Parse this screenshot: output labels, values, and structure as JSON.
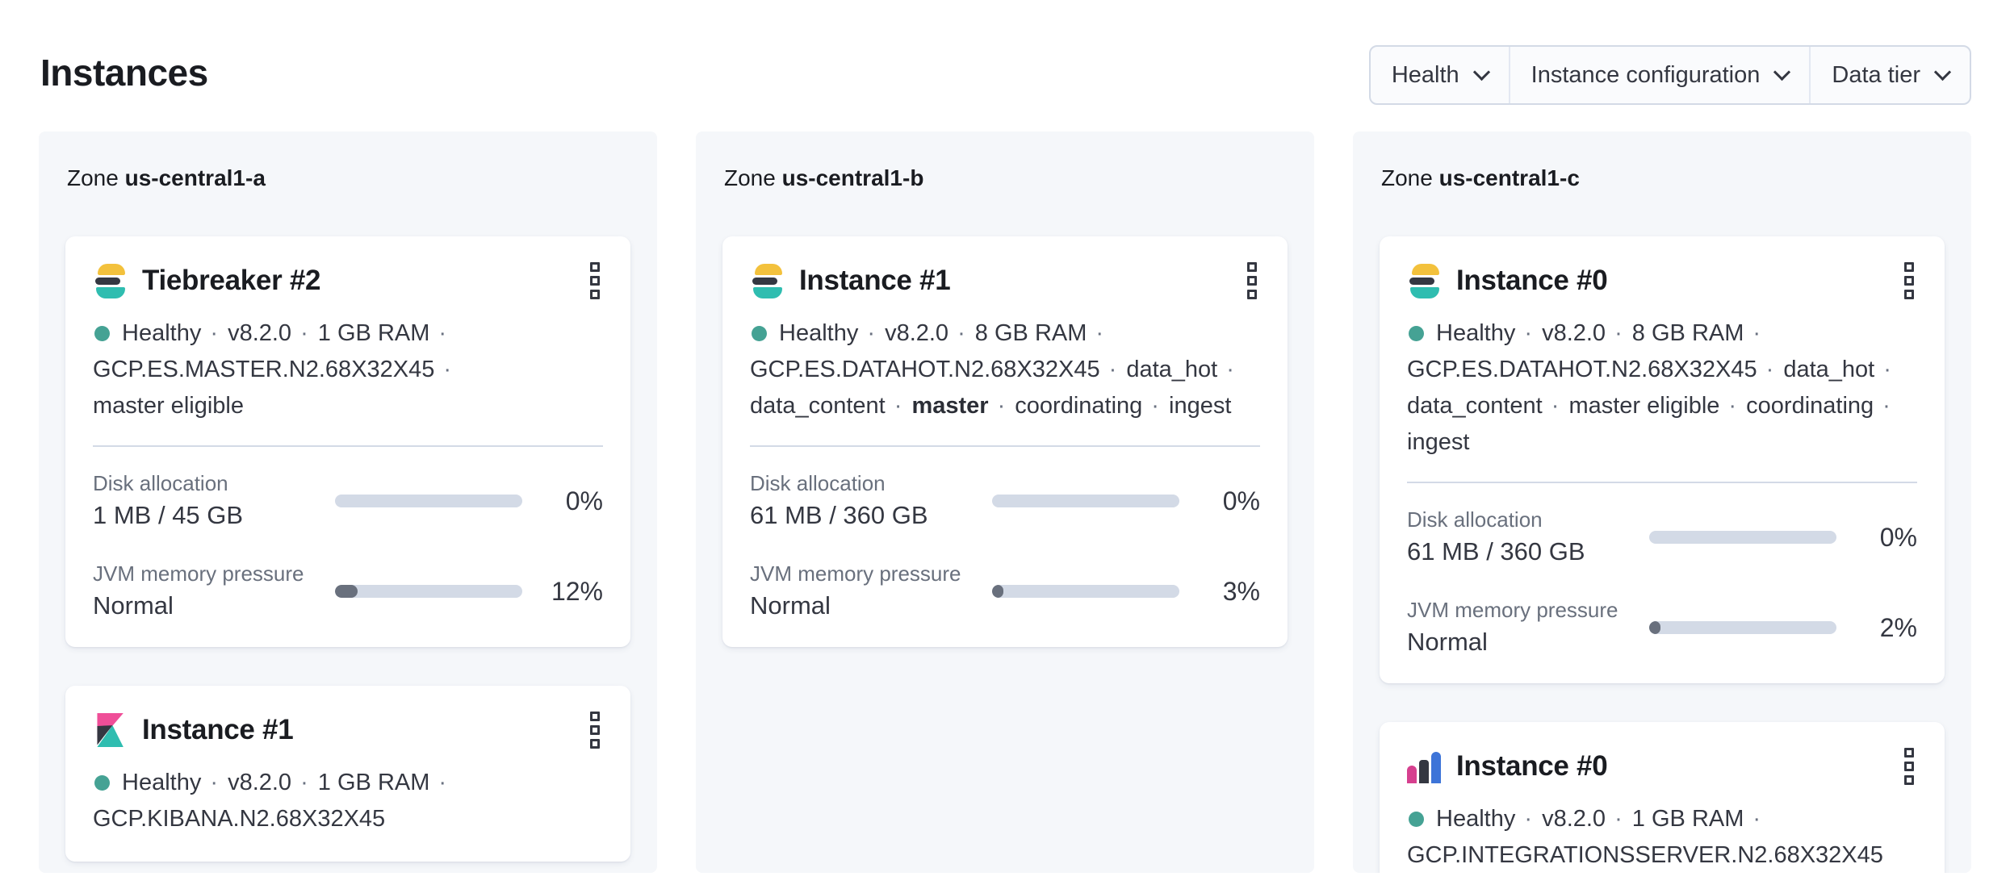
{
  "header": {
    "title": "Instances"
  },
  "filters": [
    {
      "label": "Health"
    },
    {
      "label": "Instance configuration"
    },
    {
      "label": "Data tier"
    }
  ],
  "labels": {
    "zone_prefix": "Zone",
    "separator": "·"
  },
  "colors": {
    "healthy_dot": "#45a294",
    "bar_track": "#d3dae6",
    "bar_fill": "#69707d",
    "logo_yellow": "#f3c13c",
    "logo_dark": "#343741",
    "logo_teal": "#2fbdb0",
    "logo_pink": "#ef4e98",
    "logo_magenta": "#d6408f",
    "logo_blue": "#3d74d8"
  },
  "zones": [
    {
      "name": "us-central1-a",
      "cards": [
        {
          "logo": "elasticsearch",
          "title": "Tiebreaker #2",
          "status": [
            {
              "text": "Healthy"
            },
            {
              "text": "v8.2.0"
            },
            {
              "text": "1 GB RAM"
            },
            {
              "text": "GCP.ES.MASTER.N2.68X32X45"
            },
            {
              "text": "master eligible"
            }
          ],
          "metrics": [
            {
              "label": "Disk allocation",
              "value": "1 MB / 45 GB",
              "percent": 0,
              "percent_label": "0%"
            },
            {
              "label": "JVM memory pressure",
              "value": "Normal",
              "percent": 12,
              "percent_label": "12%"
            }
          ]
        },
        {
          "logo": "kibana",
          "title": "Instance #1",
          "status": [
            {
              "text": "Healthy"
            },
            {
              "text": "v8.2.0"
            },
            {
              "text": "1 GB RAM"
            },
            {
              "text": "GCP.KIBANA.N2.68X32X45"
            }
          ],
          "metrics": []
        }
      ]
    },
    {
      "name": "us-central1-b",
      "cards": [
        {
          "logo": "elasticsearch",
          "title": "Instance #1",
          "status": [
            {
              "text": "Healthy"
            },
            {
              "text": "v8.2.0"
            },
            {
              "text": "8 GB RAM"
            },
            {
              "text": "GCP.ES.DATAHOT.N2.68X32X45"
            },
            {
              "text": "data_hot"
            },
            {
              "text": "data_content"
            },
            {
              "text": "master",
              "bold": true
            },
            {
              "text": "coordinating"
            },
            {
              "text": "ingest"
            }
          ],
          "metrics": [
            {
              "label": "Disk allocation",
              "value": "61 MB / 360 GB",
              "percent": 0,
              "percent_label": "0%"
            },
            {
              "label": "JVM memory pressure",
              "value": "Normal",
              "percent": 3,
              "percent_label": "3%"
            }
          ]
        }
      ]
    },
    {
      "name": "us-central1-c",
      "cards": [
        {
          "logo": "elasticsearch",
          "title": "Instance #0",
          "status": [
            {
              "text": "Healthy"
            },
            {
              "text": "v8.2.0"
            },
            {
              "text": "8 GB RAM"
            },
            {
              "text": "GCP.ES.DATAHOT.N2.68X32X45"
            },
            {
              "text": "data_hot"
            },
            {
              "text": "data_content"
            },
            {
              "text": "master eligible"
            },
            {
              "text": "coordinating"
            },
            {
              "text": "ingest"
            }
          ],
          "metrics": [
            {
              "label": "Disk allocation",
              "value": "61 MB / 360 GB",
              "percent": 0,
              "percent_label": "0%"
            },
            {
              "label": "JVM memory pressure",
              "value": "Normal",
              "percent": 2,
              "percent_label": "2%"
            }
          ]
        },
        {
          "logo": "integrations-server",
          "title": "Instance #0",
          "status": [
            {
              "text": "Healthy"
            },
            {
              "text": "v8.2.0"
            },
            {
              "text": "1 GB RAM"
            },
            {
              "text": "GCP.INTEGRATIONSSERVER.N2.68X32X45"
            }
          ],
          "metrics": []
        }
      ]
    }
  ]
}
